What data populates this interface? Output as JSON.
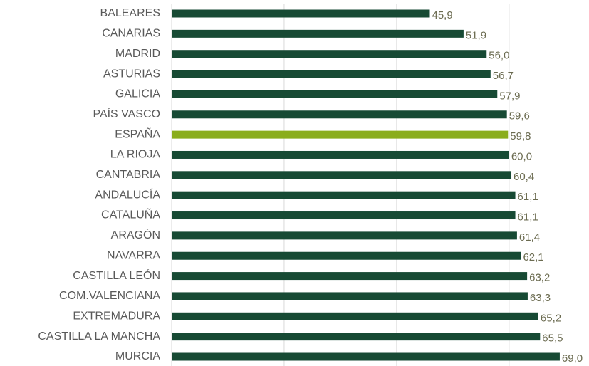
{
  "chart_data": {
    "type": "bar",
    "orientation": "horizontal",
    "categories": [
      "BALEARES",
      "CANARIAS",
      "MADRID",
      "ASTURIAS",
      "GALICIA",
      "PAÍS VASCO",
      "ESPAÑA",
      "LA RIOJA",
      "CANTABRIA",
      "ANDALUCÍA",
      "CATALUÑA",
      "ARAGÓN",
      "NAVARRA",
      "CASTILLA LEÓN",
      "COM.VALENCIANA",
      "EXTREMADURA",
      "CASTILLA LA MANCHA",
      "MURCIA"
    ],
    "values": [
      45.9,
      51.9,
      56.0,
      56.7,
      57.9,
      59.6,
      59.8,
      60.0,
      60.4,
      61.1,
      61.1,
      61.4,
      62.1,
      63.2,
      63.3,
      65.2,
      65.5,
      69.0
    ],
    "value_labels": [
      "45,9",
      "51,9",
      "56,0",
      "56,7",
      "57,9",
      "59,6",
      "59,8",
      "60,0",
      "60,4",
      "61,1",
      "61,1",
      "61,4",
      "62,1",
      "63,2",
      "63,3",
      "65,2",
      "65,5",
      "69,0"
    ],
    "colors": [
      "#174a34",
      "#174a34",
      "#174a34",
      "#174a34",
      "#174a34",
      "#174a34",
      "#8aad1c",
      "#174a34",
      "#174a34",
      "#174a34",
      "#174a34",
      "#174a34",
      "#174a34",
      "#174a34",
      "#174a34",
      "#174a34",
      "#174a34",
      "#174a34"
    ],
    "xlim": [
      0,
      74.2
    ],
    "xticks": [
      0,
      20,
      40,
      60
    ],
    "grid": true
  }
}
